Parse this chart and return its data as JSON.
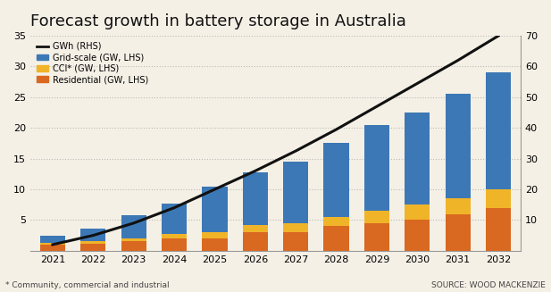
{
  "years": [
    2021,
    2022,
    2023,
    2024,
    2025,
    2026,
    2027,
    2028,
    2029,
    2030,
    2031,
    2032
  ],
  "grid_scale": [
    1.2,
    2.0,
    3.8,
    5.0,
    7.5,
    8.5,
    10.0,
    12.0,
    14.0,
    15.0,
    17.0,
    19.0
  ],
  "cci": [
    0.3,
    0.4,
    0.5,
    0.7,
    1.0,
    1.2,
    1.5,
    1.5,
    2.0,
    2.5,
    2.5,
    3.0
  ],
  "residential": [
    1.0,
    1.2,
    1.5,
    2.0,
    2.0,
    3.0,
    3.0,
    4.0,
    4.5,
    5.0,
    6.0,
    7.0
  ],
  "gwh_line": [
    2.0,
    5.0,
    9.0,
    14.0,
    20.0,
    26.0,
    32.5,
    39.5,
    47.0,
    54.5,
    62.0,
    70.0
  ],
  "bar_colors": {
    "grid_scale": "#3c78b5",
    "cci": "#f0b429",
    "residential": "#d96820"
  },
  "line_color": "#111111",
  "title": "Forecast growth in battery storage in Australia",
  "title_fontsize": 13,
  "legend_items": [
    {
      "label": "GWh (RHS)",
      "color": "#111111",
      "type": "line"
    },
    {
      "label": "Grid-scale (GW, LHS)",
      "color": "#3c78b5",
      "type": "bar"
    },
    {
      "label": "CCI* (GW, LHS)",
      "color": "#f0b429",
      "type": "bar"
    },
    {
      "label": "Residential (GW, LHS)",
      "color": "#d96820",
      "type": "bar"
    }
  ],
  "ylim_left": [
    0,
    35
  ],
  "ylim_right": [
    0,
    70
  ],
  "yticks_left": [
    5,
    10,
    15,
    20,
    25,
    30,
    35
  ],
  "yticks_right": [
    10,
    20,
    30,
    40,
    50,
    60,
    70
  ],
  "footnote": "* Community, commercial and industrial",
  "source": "SOURCE: WOOD MACKENZIE",
  "background_color": "#f5f0e6",
  "grid_color": "#bbbbbb"
}
